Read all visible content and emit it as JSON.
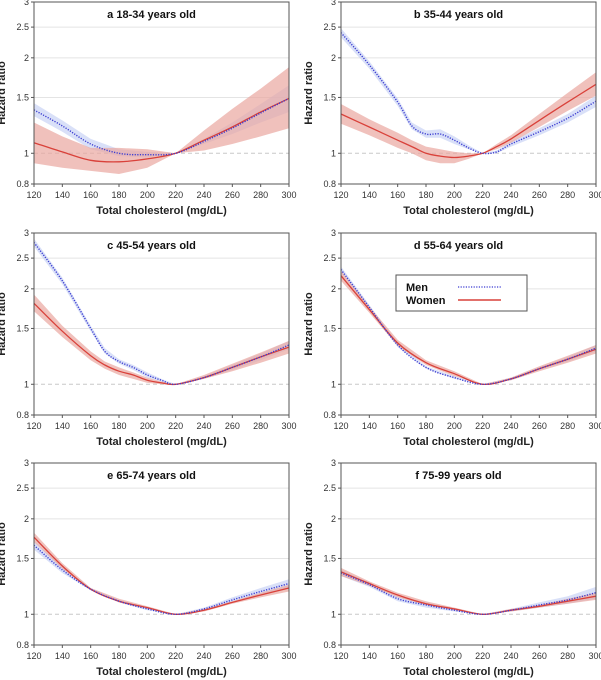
{
  "chart_data": [
    {
      "type": "line",
      "panel": "a",
      "title": "a 18-34 years old",
      "xlabel": "Total cholesterol (mg/dL)",
      "ylabel": "Hazard ratio",
      "yscale": "log",
      "xlim": [
        120,
        300
      ],
      "ylim": [
        0.8,
        3
      ],
      "xticks": [
        120,
        140,
        160,
        180,
        200,
        220,
        240,
        260,
        280,
        300
      ],
      "yticks": [
        0.8,
        1,
        1.5,
        2,
        2.5,
        3
      ],
      "reference_line": 1,
      "x": [
        120,
        140,
        160,
        180,
        200,
        220,
        240,
        260,
        280,
        300
      ],
      "series": [
        {
          "name": "Men",
          "color": "#3b3bd1",
          "band_color": "#c9d3f5",
          "style": "dotted",
          "values": [
            1.37,
            1.22,
            1.07,
            1.0,
            0.99,
            1.0,
            1.09,
            1.2,
            1.34,
            1.49
          ],
          "lower": [
            1.31,
            1.17,
            1.03,
            0.98,
            0.97,
            1.0,
            1.07,
            1.15,
            1.25,
            1.35
          ],
          "upper": [
            1.44,
            1.27,
            1.11,
            1.03,
            1.01,
            1.0,
            1.11,
            1.25,
            1.43,
            1.64
          ]
        },
        {
          "name": "Women",
          "color": "#d9413a",
          "band_color": "#eaa69f",
          "style": "solid",
          "values": [
            1.08,
            1.01,
            0.95,
            0.94,
            0.96,
            1.0,
            1.1,
            1.21,
            1.35,
            1.49
          ],
          "lower": [
            0.93,
            0.9,
            0.88,
            0.86,
            0.9,
            1.0,
            1.02,
            1.07,
            1.13,
            1.2
          ],
          "upper": [
            1.25,
            1.13,
            1.04,
            1.04,
            1.03,
            1.0,
            1.18,
            1.38,
            1.6,
            1.87
          ]
        }
      ]
    },
    {
      "type": "line",
      "panel": "b",
      "title": "b 35-44 years old",
      "xlabel": "Total cholesterol (mg/dL)",
      "ylabel": "Hazard ratio",
      "yscale": "log",
      "xlim": [
        120,
        300
      ],
      "ylim": [
        0.8,
        3
      ],
      "xticks": [
        120,
        140,
        160,
        180,
        200,
        220,
        240,
        260,
        280,
        300
      ],
      "yticks": [
        0.8,
        1,
        1.5,
        2,
        2.5,
        3
      ],
      "reference_line": 1,
      "x": [
        120,
        140,
        160,
        170,
        180,
        190,
        200,
        210,
        220,
        230,
        240,
        260,
        280,
        300
      ],
      "series": [
        {
          "name": "Men",
          "color": "#3b3bd1",
          "band_color": "#c9d3f5",
          "style": "dotted",
          "values": [
            2.4,
            1.9,
            1.45,
            1.22,
            1.15,
            1.15,
            1.1,
            1.04,
            1.0,
            1.01,
            1.07,
            1.17,
            1.29,
            1.46
          ],
          "lower": [
            2.32,
            1.85,
            1.41,
            1.19,
            1.12,
            1.12,
            1.07,
            1.03,
            1.0,
            1.0,
            1.05,
            1.14,
            1.25,
            1.4
          ],
          "upper": [
            2.48,
            1.95,
            1.49,
            1.25,
            1.18,
            1.19,
            1.13,
            1.06,
            1.0,
            1.02,
            1.09,
            1.2,
            1.33,
            1.52
          ]
        },
        {
          "name": "Women",
          "color": "#d9413a",
          "band_color": "#eaa69f",
          "style": "solid",
          "values": [
            1.33,
            1.21,
            1.1,
            1.05,
            1.0,
            0.98,
            0.97,
            0.98,
            1.0,
            1.05,
            1.11,
            1.27,
            1.45,
            1.65
          ],
          "lower": [
            1.24,
            1.14,
            1.04,
            1.0,
            0.95,
            0.93,
            0.93,
            0.96,
            1.0,
            1.03,
            1.08,
            1.21,
            1.36,
            1.52
          ],
          "upper": [
            1.43,
            1.28,
            1.16,
            1.1,
            1.05,
            1.03,
            1.01,
            1.0,
            1.0,
            1.07,
            1.14,
            1.33,
            1.55,
            1.8
          ]
        }
      ]
    },
    {
      "type": "line",
      "panel": "c",
      "title": "c 45-54 years old",
      "xlabel": "Total cholesterol (mg/dL)",
      "ylabel": "Hazard ratio",
      "yscale": "log",
      "xlim": [
        120,
        300
      ],
      "ylim": [
        0.8,
        3
      ],
      "xticks": [
        120,
        140,
        160,
        180,
        200,
        220,
        240,
        260,
        280,
        300
      ],
      "yticks": [
        0.8,
        1,
        1.5,
        2,
        2.5,
        3
      ],
      "reference_line": 1,
      "x": [
        120,
        140,
        160,
        170,
        180,
        190,
        200,
        210,
        220,
        240,
        260,
        280,
        300
      ],
      "series": [
        {
          "name": "Men",
          "color": "#3b3bd1",
          "band_color": "#c9d3f5",
          "style": "dotted",
          "values": [
            2.8,
            2.12,
            1.5,
            1.27,
            1.18,
            1.13,
            1.07,
            1.03,
            1.0,
            1.05,
            1.13,
            1.22,
            1.33
          ],
          "lower": [
            2.72,
            2.07,
            1.47,
            1.25,
            1.16,
            1.11,
            1.05,
            1.02,
            1.0,
            1.04,
            1.11,
            1.19,
            1.29
          ],
          "upper": [
            2.88,
            2.17,
            1.53,
            1.3,
            1.2,
            1.15,
            1.09,
            1.04,
            1.0,
            1.06,
            1.15,
            1.25,
            1.37
          ]
        },
        {
          "name": "Women",
          "color": "#d9413a",
          "band_color": "#eaa69f",
          "style": "solid",
          "values": [
            1.8,
            1.47,
            1.23,
            1.15,
            1.1,
            1.07,
            1.03,
            1.01,
            1.0,
            1.05,
            1.13,
            1.22,
            1.31
          ],
          "lower": [
            1.7,
            1.41,
            1.19,
            1.12,
            1.07,
            1.04,
            1.01,
            1.0,
            1.0,
            1.04,
            1.1,
            1.17,
            1.25
          ],
          "upper": [
            1.92,
            1.53,
            1.27,
            1.18,
            1.13,
            1.09,
            1.05,
            1.02,
            1.0,
            1.07,
            1.16,
            1.26,
            1.37
          ]
        }
      ]
    },
    {
      "type": "line",
      "panel": "d",
      "title": "d 55-64 years old",
      "xlabel": "Total cholesterol (mg/dL)",
      "ylabel": "Hazard ratio",
      "yscale": "log",
      "xlim": [
        120,
        300
      ],
      "ylim": [
        0.8,
        3
      ],
      "xticks": [
        120,
        140,
        160,
        180,
        200,
        220,
        240,
        260,
        280,
        300
      ],
      "yticks": [
        0.8,
        1,
        1.5,
        2,
        2.5,
        3
      ],
      "reference_line": 1,
      "legend": {
        "position": "upper-center",
        "entries": [
          {
            "label": "Men",
            "style": "dotted"
          },
          {
            "label": "Women",
            "style": "solid"
          }
        ]
      },
      "x": [
        120,
        140,
        160,
        180,
        200,
        220,
        240,
        260,
        280,
        300
      ],
      "series": [
        {
          "name": "Men",
          "color": "#3b3bd1",
          "band_color": "#c9d3f5",
          "style": "dotted",
          "values": [
            2.3,
            1.75,
            1.33,
            1.13,
            1.05,
            1.0,
            1.04,
            1.12,
            1.2,
            1.3
          ],
          "lower": [
            2.25,
            1.72,
            1.31,
            1.12,
            1.04,
            1.0,
            1.03,
            1.11,
            1.18,
            1.27
          ],
          "upper": [
            2.35,
            1.78,
            1.35,
            1.14,
            1.06,
            1.0,
            1.05,
            1.13,
            1.22,
            1.33
          ]
        },
        {
          "name": "Women",
          "color": "#d9413a",
          "band_color": "#eaa69f",
          "style": "solid",
          "values": [
            2.2,
            1.72,
            1.35,
            1.17,
            1.08,
            1.0,
            1.04,
            1.12,
            1.2,
            1.29
          ],
          "lower": [
            2.12,
            1.68,
            1.32,
            1.15,
            1.06,
            1.0,
            1.03,
            1.1,
            1.17,
            1.25
          ],
          "upper": [
            2.28,
            1.76,
            1.38,
            1.19,
            1.1,
            1.0,
            1.05,
            1.14,
            1.23,
            1.33
          ]
        }
      ]
    },
    {
      "type": "line",
      "panel": "e",
      "title": "e 65-74 years old",
      "xlabel": "Total cholesterol (mg/dL)",
      "ylabel": "Hazard ratio",
      "yscale": "log",
      "xlim": [
        120,
        300
      ],
      "ylim": [
        0.8,
        3
      ],
      "xticks": [
        120,
        140,
        160,
        180,
        200,
        220,
        240,
        260,
        280,
        300
      ],
      "yticks": [
        0.8,
        1,
        1.5,
        2,
        2.5,
        3
      ],
      "reference_line": 1,
      "x": [
        120,
        140,
        160,
        180,
        200,
        220,
        240,
        260,
        280,
        300
      ],
      "series": [
        {
          "name": "Men",
          "color": "#3b3bd1",
          "band_color": "#c9d3f5",
          "style": "dotted",
          "values": [
            1.65,
            1.38,
            1.2,
            1.1,
            1.04,
            1.0,
            1.04,
            1.11,
            1.18,
            1.25
          ],
          "lower": [
            1.6,
            1.35,
            1.19,
            1.09,
            1.03,
            1.0,
            1.03,
            1.09,
            1.15,
            1.21
          ],
          "upper": [
            1.7,
            1.41,
            1.21,
            1.11,
            1.05,
            1.0,
            1.05,
            1.13,
            1.21,
            1.29
          ]
        },
        {
          "name": "Women",
          "color": "#d9413a",
          "band_color": "#eaa69f",
          "style": "solid",
          "values": [
            1.75,
            1.42,
            1.2,
            1.1,
            1.05,
            1.0,
            1.03,
            1.09,
            1.15,
            1.21
          ],
          "lower": [
            1.69,
            1.39,
            1.19,
            1.09,
            1.04,
            1.0,
            1.02,
            1.08,
            1.13,
            1.18
          ],
          "upper": [
            1.81,
            1.45,
            1.21,
            1.12,
            1.06,
            1.0,
            1.04,
            1.1,
            1.17,
            1.24
          ]
        }
      ]
    },
    {
      "type": "line",
      "panel": "f",
      "title": "f 75-99 years old",
      "xlabel": "Total cholesterol (mg/dL)",
      "ylabel": "Hazard ratio",
      "yscale": "log",
      "xlim": [
        120,
        300
      ],
      "ylim": [
        0.8,
        3
      ],
      "xticks": [
        120,
        140,
        160,
        180,
        200,
        220,
        240,
        260,
        280,
        300
      ],
      "yticks": [
        0.8,
        1,
        1.5,
        2,
        2.5,
        3
      ],
      "reference_line": 1,
      "x": [
        120,
        140,
        160,
        180,
        200,
        220,
        240,
        260,
        280,
        300
      ],
      "series": [
        {
          "name": "Men",
          "color": "#3b3bd1",
          "band_color": "#c9d3f5",
          "style": "dotted",
          "values": [
            1.35,
            1.24,
            1.12,
            1.07,
            1.03,
            1.0,
            1.03,
            1.07,
            1.11,
            1.17
          ],
          "lower": [
            1.32,
            1.22,
            1.1,
            1.05,
            1.02,
            1.0,
            1.02,
            1.05,
            1.08,
            1.12
          ],
          "upper": [
            1.38,
            1.26,
            1.14,
            1.09,
            1.04,
            1.0,
            1.04,
            1.09,
            1.14,
            1.22
          ]
        },
        {
          "name": "Women",
          "color": "#d9413a",
          "band_color": "#eaa69f",
          "style": "solid",
          "values": [
            1.36,
            1.25,
            1.15,
            1.08,
            1.04,
            1.0,
            1.03,
            1.06,
            1.1,
            1.14
          ],
          "lower": [
            1.32,
            1.23,
            1.13,
            1.07,
            1.03,
            1.0,
            1.02,
            1.05,
            1.08,
            1.11
          ],
          "upper": [
            1.4,
            1.27,
            1.17,
            1.1,
            1.05,
            1.0,
            1.04,
            1.07,
            1.12,
            1.17
          ]
        }
      ]
    }
  ],
  "legend": {
    "men_label": "Men",
    "women_label": "Women"
  }
}
